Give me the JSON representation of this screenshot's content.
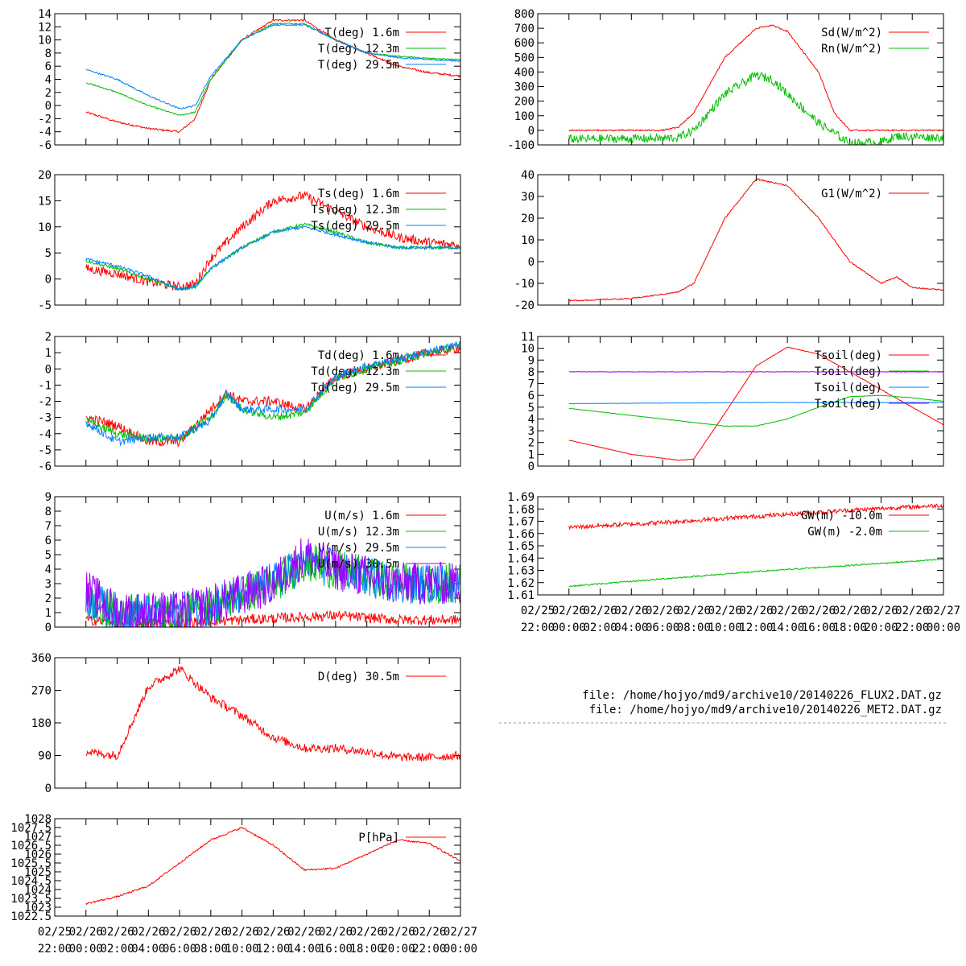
{
  "files": {
    "line1": "file: /home/hojyo/md9/archive10/20140226_FLUX2.DAT.gz",
    "line2": "file: /home/hojyo/md9/archive10/20140226_MET2.DAT.gz"
  },
  "time_axis": {
    "range": [
      "02/25 22:00",
      "02/27 00:00"
    ],
    "tick_dates": [
      "02/25",
      "02/26",
      "02/26",
      "02/26",
      "02/26",
      "02/26",
      "02/26",
      "02/26",
      "02/26",
      "02/26",
      "02/26",
      "02/26",
      "02/26",
      "02/27"
    ],
    "tick_times": [
      "22:00",
      "00:00",
      "02:00",
      "04:00",
      "06:00",
      "08:00",
      "10:00",
      "12:00",
      "14:00",
      "16:00",
      "18:00",
      "20:00",
      "22:00",
      "00:00"
    ]
  },
  "colors": {
    "red": "#ff0000",
    "green": "#00c000",
    "blue": "#0080ff",
    "purple": "#a000ff"
  },
  "chart_data": [
    {
      "type": "line",
      "ylim": [
        -6,
        14
      ],
      "yticks": [
        "-6",
        "-4",
        "-2",
        "0",
        "2",
        "4",
        "6",
        "8",
        "10",
        "12",
        "14"
      ],
      "series": [
        {
          "name": "T(deg)  1.6m",
          "color": "red",
          "noise": 0.15,
          "x": [
            "02/26 00:00",
            "02/26 02:00",
            "02/26 04:00",
            "02/26 06:00",
            "02/26 07:00",
            "02/26 08:00",
            "02/26 10:00",
            "02/26 12:00",
            "02/26 14:00",
            "02/26 16:00",
            "02/26 18:00",
            "02/26 20:00",
            "02/26 22:00",
            "02/27 00:00"
          ],
          "y": [
            -1,
            -2.5,
            -3.5,
            -4,
            -2,
            4,
            10,
            13,
            13,
            10,
            8,
            6,
            5,
            4.5
          ]
        },
        {
          "name": "T(deg) 12.3m",
          "color": "green",
          "noise": 0.1,
          "x": [
            "02/26 00:00",
            "02/26 02:00",
            "02/26 04:00",
            "02/26 06:00",
            "02/26 07:00",
            "02/26 08:00",
            "02/26 10:00",
            "02/26 12:00",
            "02/26 14:00",
            "02/26 16:00",
            "02/26 18:00",
            "02/26 20:00",
            "02/26 22:00",
            "02/27 00:00"
          ],
          "y": [
            3.5,
            2,
            0,
            -1.5,
            -1,
            4,
            10,
            12.5,
            12.5,
            10,
            8,
            7.5,
            7.2,
            7
          ]
        },
        {
          "name": "T(deg) 29.5m",
          "color": "blue",
          "noise": 0.12,
          "x": [
            "02/26 00:00",
            "02/26 02:00",
            "02/26 04:00",
            "02/26 06:00",
            "02/26 07:00",
            "02/26 08:00",
            "02/26 10:00",
            "02/26 12:00",
            "02/26 14:00",
            "02/26 16:00",
            "02/26 18:00",
            "02/26 20:00",
            "02/26 22:00",
            "02/27 00:00"
          ],
          "y": [
            5.5,
            4,
            1.5,
            -0.5,
            0,
            4.5,
            10,
            12.3,
            12.3,
            10,
            8,
            7.3,
            7,
            6.8
          ]
        }
      ]
    },
    {
      "type": "line",
      "ylim": [
        -5,
        20
      ],
      "yticks": [
        "-5",
        "0",
        "5",
        "10",
        "15",
        "20"
      ],
      "series": [
        {
          "name": "Ts(deg)  1.6m",
          "color": "red",
          "noise": 0.9,
          "x": [
            "02/26 00:00",
            "02/26 02:00",
            "02/26 04:00",
            "02/26 06:00",
            "02/26 07:00",
            "02/26 08:00",
            "02/26 10:00",
            "02/26 12:00",
            "02/26 14:00",
            "02/26 16:00",
            "02/26 18:00",
            "02/26 20:00",
            "02/26 22:00",
            "02/27 00:00"
          ],
          "y": [
            2,
            1,
            -0.5,
            -1.5,
            -1,
            4,
            10,
            15,
            16,
            13,
            10,
            8,
            7,
            6.5
          ]
        },
        {
          "name": "Ts(deg) 12.3m",
          "color": "green",
          "noise": 0.3,
          "x": [
            "02/26 00:00",
            "02/26 02:00",
            "02/26 04:00",
            "02/26 06:00",
            "02/26 07:00",
            "02/26 08:00",
            "02/26 10:00",
            "02/26 12:00",
            "02/26 14:00",
            "02/26 16:00",
            "02/26 18:00",
            "02/26 20:00",
            "02/26 22:00",
            "02/27 00:00"
          ],
          "y": [
            3.5,
            2,
            0,
            -2,
            -1.5,
            2,
            6,
            9,
            10.5,
            9,
            7,
            6,
            6,
            6
          ]
        },
        {
          "name": "Ts(deg) 29.5m",
          "color": "blue",
          "noise": 0.3,
          "x": [
            "02/26 00:00",
            "02/26 02:00",
            "02/26 04:00",
            "02/26 06:00",
            "02/26 07:00",
            "02/26 08:00",
            "02/26 10:00",
            "02/26 12:00",
            "02/26 14:00",
            "02/26 16:00",
            "02/26 18:00",
            "02/26 20:00",
            "02/26 22:00",
            "02/27 00:00"
          ],
          "y": [
            3.8,
            2.5,
            0.5,
            -2,
            -1.5,
            2,
            6,
            9,
            10,
            8.5,
            7,
            6,
            6,
            6
          ]
        }
      ]
    },
    {
      "type": "line",
      "ylim": [
        -6,
        2
      ],
      "yticks": [
        "-6",
        "-5",
        "-4",
        "-3",
        "-2",
        "-1",
        "0",
        "1",
        "2"
      ],
      "series": [
        {
          "name": "Td(deg)  1.6m",
          "color": "red",
          "noise": 0.3,
          "x": [
            "02/26 00:00",
            "02/26 02:00",
            "02/26 04:00",
            "02/26 06:00",
            "02/26 08:00",
            "02/26 09:00",
            "02/26 10:00",
            "02/26 12:00",
            "02/26 14:00",
            "02/26 16:00",
            "02/26 18:00",
            "02/26 20:00",
            "02/26 22:00",
            "02/27 00:00"
          ],
          "y": [
            -3,
            -3.5,
            -4.5,
            -4.5,
            -2.5,
            -1.5,
            -2,
            -2,
            -2.5,
            -0.5,
            0,
            0.5,
            1,
            1.3
          ]
        },
        {
          "name": "Td(deg) 12.3m",
          "color": "green",
          "noise": 0.25,
          "x": [
            "02/26 00:00",
            "02/26 02:00",
            "02/26 04:00",
            "02/26 06:00",
            "02/26 08:00",
            "02/26 09:00",
            "02/26 10:00",
            "02/26 12:00",
            "02/26 14:00",
            "02/26 16:00",
            "02/26 18:00",
            "02/26 20:00",
            "02/26 22:00",
            "02/27 00:00"
          ],
          "y": [
            -3.2,
            -4,
            -4.3,
            -4.3,
            -3,
            -1.6,
            -2.5,
            -3,
            -2.7,
            -0.6,
            0,
            0.5,
            1,
            1.4
          ]
        },
        {
          "name": "Td(deg) 29.5m",
          "color": "blue",
          "noise": 0.25,
          "x": [
            "02/26 00:00",
            "02/26 02:00",
            "02/26 04:00",
            "02/26 06:00",
            "02/26 08:00",
            "02/26 09:00",
            "02/26 10:00",
            "02/26 12:00",
            "02/26 14:00",
            "02/26 16:00",
            "02/26 18:00",
            "02/26 20:00",
            "02/26 22:00",
            "02/27 00:00"
          ],
          "y": [
            -3.3,
            -4.5,
            -4.2,
            -4.2,
            -3.2,
            -1.5,
            -2.5,
            -2.5,
            -2.5,
            -0.5,
            0.2,
            0.6,
            1.1,
            1.5
          ]
        }
      ]
    },
    {
      "type": "line",
      "ylim": [
        0,
        9
      ],
      "yticks": [
        "0",
        "1",
        "2",
        "3",
        "4",
        "5",
        "6",
        "7",
        "8",
        "9"
      ],
      "series": [
        {
          "name": "U(m/s)  1.6m",
          "color": "red",
          "noise": 0.35,
          "x": [
            "02/26 00:00",
            "02/26 02:00",
            "02/26 06:00",
            "02/26 08:00",
            "02/26 12:00",
            "02/26 16:00",
            "02/26 20:00",
            "02/27 00:00"
          ],
          "y": [
            0.5,
            0.3,
            0.3,
            0.4,
            0.6,
            0.8,
            0.5,
            0.5
          ]
        },
        {
          "name": "U(m/s) 12.3m",
          "color": "green",
          "noise": 1.4,
          "x": [
            "02/26 00:00",
            "02/26 02:00",
            "02/26 06:00",
            "02/26 08:00",
            "02/26 12:00",
            "02/26 14:00",
            "02/26 16:00",
            "02/26 20:00",
            "02/27 00:00"
          ],
          "y": [
            2,
            1,
            1,
            1.5,
            3,
            4.5,
            4,
            3,
            3
          ]
        },
        {
          "name": "U(m/s) 29.5m",
          "color": "blue",
          "noise": 1.4,
          "x": [
            "02/26 00:00",
            "02/26 02:00",
            "02/26 06:00",
            "02/26 08:00",
            "02/26 12:00",
            "02/26 14:00",
            "02/26 16:00",
            "02/26 20:00",
            "02/27 00:00"
          ],
          "y": [
            2,
            1,
            1,
            1.5,
            3,
            4.5,
            4,
            3,
            3
          ]
        },
        {
          "name": "U(m/s) 30.5m",
          "color": "purple",
          "noise": 1.5,
          "x": [
            "02/26 00:00",
            "02/26 02:00",
            "02/26 06:00",
            "02/26 08:00",
            "02/26 12:00",
            "02/26 14:00",
            "02/26 16:00",
            "02/26 20:00",
            "02/27 00:00"
          ],
          "y": [
            2.5,
            1,
            1,
            1.5,
            3,
            5,
            4,
            3,
            3
          ]
        }
      ]
    },
    {
      "type": "line",
      "ylim": [
        0,
        360
      ],
      "yticks": [
        "0",
        "90",
        "180",
        "270",
        "360"
      ],
      "series": [
        {
          "name": "D(deg)  30.5m",
          "color": "red",
          "noise": 12,
          "x": [
            "02/26 00:00",
            "02/26 02:00",
            "02/26 04:00",
            "02/26 06:00",
            "02/26 08:00",
            "02/26 10:00",
            "02/26 12:00",
            "02/26 14:00",
            "02/26 16:00",
            "02/26 18:00",
            "02/26 20:00",
            "02/26 22:00",
            "02/27 00:00"
          ],
          "y": [
            100,
            90,
            280,
            330,
            250,
            200,
            140,
            110,
            110,
            100,
            85,
            85,
            90
          ]
        }
      ]
    },
    {
      "type": "line",
      "ylim": [
        1022.5,
        1028
      ],
      "yticks": [
        "1022.5",
        "1023",
        "1023.5",
        "1024",
        "1024.5",
        "1025",
        "1025.5",
        "1026",
        "1026.5",
        "1027",
        "1027.5",
        "1028"
      ],
      "series": [
        {
          "name": "P[hPa]",
          "color": "red",
          "noise": 0.05,
          "x": [
            "02/26 00:00",
            "02/26 02:00",
            "02/26 04:00",
            "02/26 06:00",
            "02/26 08:00",
            "02/26 10:00",
            "02/26 12:00",
            "02/26 14:00",
            "02/26 16:00",
            "02/26 18:00",
            "02/26 20:00",
            "02/26 22:00",
            "02/27 00:00"
          ],
          "y": [
            1023.2,
            1023.6,
            1024.2,
            1025.5,
            1026.8,
            1027.5,
            1026.5,
            1025.1,
            1025.2,
            1026,
            1026.8,
            1026.6,
            1025.6
          ]
        }
      ]
    },
    {
      "type": "line",
      "ylim": [
        -100,
        800
      ],
      "yticks": [
        "-100",
        "0",
        "100",
        "200",
        "300",
        "400",
        "500",
        "600",
        "700",
        "800"
      ],
      "series": [
        {
          "name": "Sd(W/m^2)",
          "color": "red",
          "noise": 5,
          "x": [
            "02/26 00:00",
            "02/26 06:00",
            "02/26 07:00",
            "02/26 08:00",
            "02/26 10:00",
            "02/26 12:00",
            "02/26 13:00",
            "02/26 14:00",
            "02/26 16:00",
            "02/26 17:00",
            "02/26 18:00",
            "02/27 00:00"
          ],
          "y": [
            0,
            0,
            20,
            120,
            500,
            700,
            720,
            680,
            400,
            120,
            0,
            0
          ]
        },
        {
          "name": "Rn(W/m^2)",
          "color": "green",
          "noise": 30,
          "x": [
            "02/26 00:00",
            "02/26 06:00",
            "02/26 07:00",
            "02/26 08:00",
            "02/26 10:00",
            "02/26 12:00",
            "02/26 13:00",
            "02/26 14:00",
            "02/26 16:00",
            "02/26 18:00",
            "02/26 20:00",
            "02/26 21:00",
            "02/27 00:00"
          ],
          "y": [
            -60,
            -55,
            -50,
            0,
            250,
            380,
            350,
            250,
            50,
            -90,
            -80,
            -40,
            -50
          ]
        }
      ]
    },
    {
      "type": "line",
      "ylim": [
        -20,
        40
      ],
      "yticks": [
        "-20",
        "-10",
        "0",
        "10",
        "20",
        "30",
        "40"
      ],
      "series": [
        {
          "name": "G1(W/m^2)",
          "color": "red",
          "noise": 0.3,
          "x": [
            "02/26 00:00",
            "02/26 04:00",
            "02/26 07:00",
            "02/26 08:00",
            "02/26 10:00",
            "02/26 12:00",
            "02/26 14:00",
            "02/26 16:00",
            "02/26 18:00",
            "02/26 20:00",
            "02/26 21:00",
            "02/26 22:00",
            "02/27 00:00"
          ],
          "y": [
            -18,
            -17,
            -14,
            -10,
            20,
            38,
            35,
            20,
            0,
            -10,
            -7,
            -12,
            -13
          ]
        }
      ]
    },
    {
      "type": "line",
      "ylim": [
        0,
        11
      ],
      "yticks": [
        "0",
        "1",
        "2",
        "3",
        "4",
        "5",
        "6",
        "7",
        "8",
        "9",
        "10",
        "11"
      ],
      "series": [
        {
          "name": "Tsoil(deg)",
          "color": "red",
          "noise": 0.02,
          "x": [
            "02/26 00:00",
            "02/26 04:00",
            "02/26 07:00",
            "02/26 08:00",
            "02/26 10:00",
            "02/26 12:00",
            "02/26 14:00",
            "02/26 16:00",
            "02/26 18:00",
            "02/26 20:00",
            "02/26 22:00",
            "02/27 00:00"
          ],
          "y": [
            2.2,
            1,
            0.5,
            0.6,
            4.5,
            8.5,
            10.1,
            9.5,
            8,
            6.5,
            5,
            3.5
          ]
        },
        {
          "name": "Tsoil(deg)",
          "color": "green",
          "noise": 0.02,
          "x": [
            "02/26 00:00",
            "02/26 04:00",
            "02/26 08:00",
            "02/26 10:00",
            "02/26 12:00",
            "02/26 14:00",
            "02/26 16:00",
            "02/26 18:00",
            "02/26 20:00",
            "02/26 22:00",
            "02/27 00:00"
          ],
          "y": [
            4.9,
            4.3,
            3.7,
            3.4,
            3.4,
            4,
            5,
            5.9,
            6,
            5.8,
            5.5
          ]
        },
        {
          "name": "Tsoil(deg)",
          "color": "blue",
          "noise": 0.02,
          "x": [
            "02/26 00:00",
            "02/26 12:00",
            "02/27 00:00"
          ],
          "y": [
            5.3,
            5.4,
            5.4
          ]
        },
        {
          "name": "Tsoil(deg)",
          "color": "purple",
          "noise": 0.02,
          "x": [
            "02/26 00:00",
            "02/26 12:00",
            "02/27 00:00"
          ],
          "y": [
            8,
            8,
            8
          ]
        }
      ]
    },
    {
      "type": "line",
      "ylim": [
        1.61,
        1.69
      ],
      "yticks": [
        "1.61",
        "1.62",
        "1.63",
        "1.64",
        "1.65",
        "1.66",
        "1.67",
        "1.68",
        "1.69"
      ],
      "series": [
        {
          "name": "GW(m) -10.0m",
          "color": "red",
          "noise": 0.0018,
          "x": [
            "02/26 00:00",
            "02/26 06:00",
            "02/26 12:00",
            "02/26 18:00",
            "02/27 00:00"
          ],
          "y": [
            1.665,
            1.669,
            1.674,
            1.679,
            1.683
          ]
        },
        {
          "name": "GW(m) -2.0m",
          "color": "green",
          "noise": 0.0006,
          "x": [
            "02/26 00:00",
            "02/26 06:00",
            "02/26 12:00",
            "02/26 18:00",
            "02/27 00:00"
          ],
          "y": [
            1.617,
            1.623,
            1.629,
            1.634,
            1.639
          ]
        }
      ]
    }
  ]
}
